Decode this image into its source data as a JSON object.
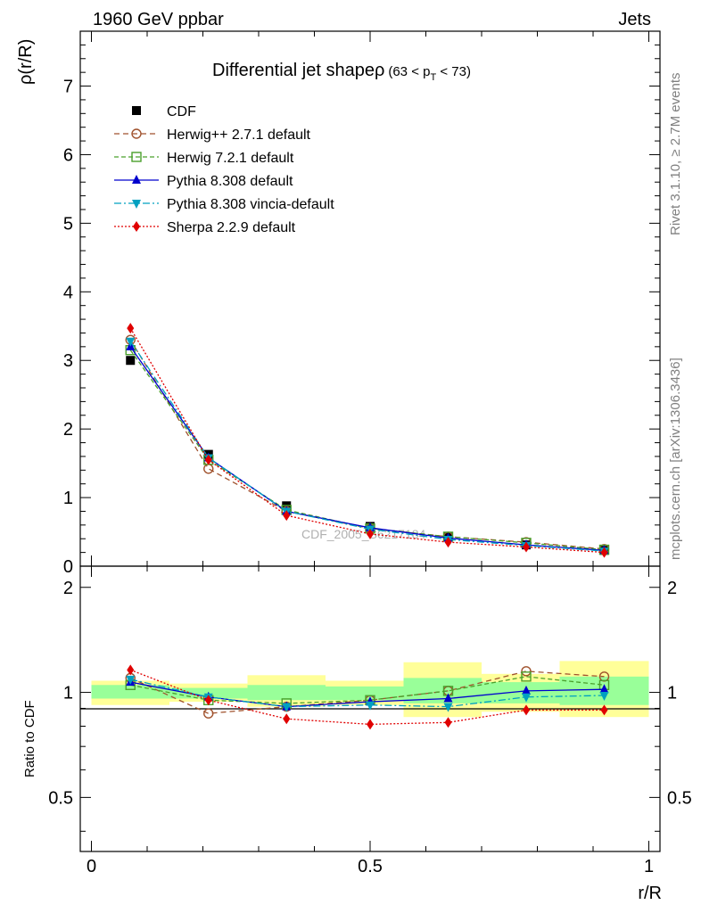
{
  "header": {
    "left": "1960 GeV ppbar",
    "right": "Jets",
    "side_top": "Rivet 3.1.10, ≥ 2.7M events",
    "side_bottom": "mcplots.cern.ch [arXiv:1306.3436]",
    "watermark": "CDF_2005_S6217184"
  },
  "colors": {
    "cdf": "#000000",
    "herwigpp": "#a0522d",
    "herwig7": "#4aa02c",
    "pythia": "#0000cd",
    "vincia": "#00a0c0",
    "sherpa": "#e00000",
    "band_yellow": "#ffff99",
    "band_green": "#99ff99"
  },
  "chart_data": {
    "type": "line",
    "title": "Differential jet shapeρ",
    "title_sub": "(63 < p",
    "title_sub_index": "T",
    "title_sub_end": " < 73)",
    "xlabel": "r/R",
    "ylabel": "ρ(r/R)",
    "ratio_ylabel": "Ratio to CDF",
    "xlim": [
      -0.02,
      1.02
    ],
    "ylim": [
      0,
      7.8
    ],
    "ratio_ylim": [
      0.35,
      2.3
    ],
    "x_ticks": [
      "0",
      "0.5",
      "1"
    ],
    "y_ticks": [
      "0",
      "1",
      "2",
      "3",
      "4",
      "5",
      "6",
      "7"
    ],
    "ratio_y_ticks": [
      "0.5",
      "1",
      "2"
    ],
    "x": [
      0.07,
      0.21,
      0.35,
      0.5,
      0.64,
      0.78,
      0.92
    ],
    "bin_edges": [
      0.0,
      0.14,
      0.28,
      0.42,
      0.56,
      0.7,
      0.84,
      1.0
    ],
    "series": [
      {
        "name": "CDF",
        "values": [
          3.0,
          1.63,
          0.88,
          0.58,
          0.43,
          0.31,
          0.23
        ],
        "marker": "square"
      },
      {
        "name": "Herwig++ 2.7.1 default",
        "values": [
          3.3,
          1.42,
          0.8,
          0.55,
          0.43,
          0.35,
          0.25
        ],
        "marker": "circle",
        "dash": "6,4"
      },
      {
        "name": "Herwig 7.2.1 default",
        "values": [
          3.15,
          1.55,
          0.82,
          0.55,
          0.43,
          0.34,
          0.24
        ],
        "marker": "open-square",
        "dash": "5,3"
      },
      {
        "name": "Pythia 8.308 default",
        "values": [
          3.2,
          1.58,
          0.8,
          0.56,
          0.41,
          0.31,
          0.23
        ],
        "marker": "triangle-up"
      },
      {
        "name": "Pythia 8.308 vincia-default",
        "values": [
          3.28,
          1.58,
          0.8,
          0.54,
          0.39,
          0.3,
          0.22
        ],
        "marker": "triangle-down",
        "dash": "8,3,2,3"
      },
      {
        "name": "Sherpa 2.2.9 default",
        "values": [
          3.47,
          1.55,
          0.74,
          0.47,
          0.35,
          0.28,
          0.2
        ],
        "marker": "diamond",
        "dash": "2,2"
      }
    ],
    "ratio_series": [
      {
        "name": "Herwig++ 2.7.1 default",
        "values": [
          1.1,
          0.87,
          0.91,
          0.95,
          1.01,
          1.15,
          1.11
        ]
      },
      {
        "name": "Herwig 7.2.1 default",
        "values": [
          1.05,
          0.95,
          0.93,
          0.95,
          1.01,
          1.11,
          1.05
        ]
      },
      {
        "name": "Pythia 8.308 default",
        "values": [
          1.07,
          0.97,
          0.91,
          0.94,
          0.96,
          1.01,
          1.02
        ]
      },
      {
        "name": "Pythia 8.308 vincia-default",
        "values": [
          1.09,
          0.97,
          0.91,
          0.92,
          0.91,
          0.97,
          0.98
        ]
      },
      {
        "name": "Sherpa 2.2.9 default",
        "values": [
          1.16,
          0.95,
          0.84,
          0.81,
          0.82,
          0.89,
          0.89
        ]
      }
    ],
    "band_outer": [
      [
        0.92,
        1.08
      ],
      [
        0.94,
        1.06
      ],
      [
        0.91,
        1.12
      ],
      [
        0.92,
        1.08
      ],
      [
        0.85,
        1.22
      ],
      [
        0.88,
        1.13
      ],
      [
        0.85,
        1.23
      ]
    ],
    "band_inner": [
      [
        0.96,
        1.05
      ],
      [
        0.96,
        1.03
      ],
      [
        0.95,
        1.05
      ],
      [
        0.95,
        1.04
      ],
      [
        0.93,
        1.1
      ],
      [
        0.93,
        1.07
      ],
      [
        0.92,
        1.11
      ]
    ]
  }
}
